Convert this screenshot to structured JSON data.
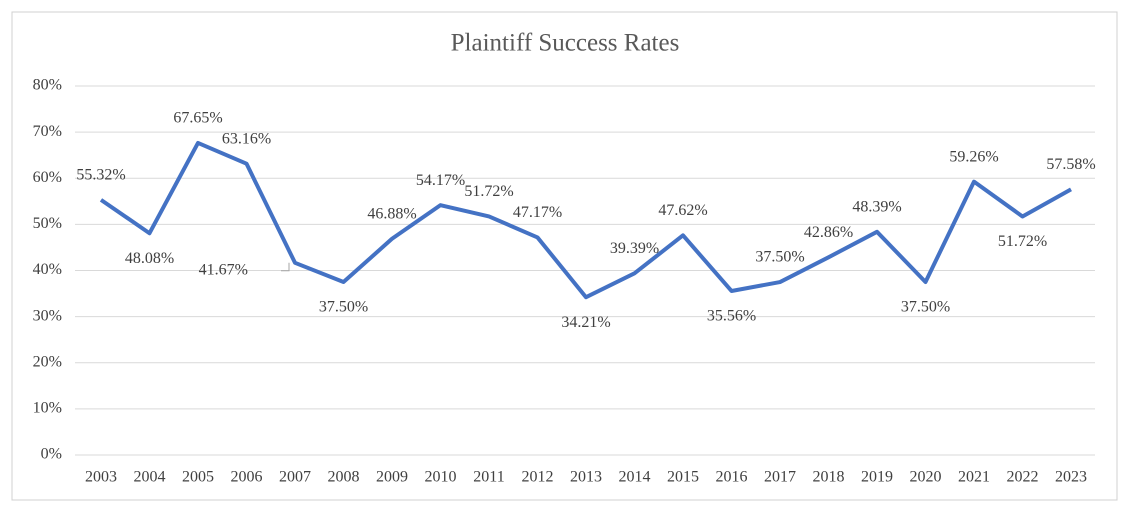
{
  "chart_data": {
    "type": "line",
    "title": "Plaintiff Success Rates",
    "categories": [
      "2003",
      "2004",
      "2005",
      "2006",
      "2007",
      "2008",
      "2009",
      "2010",
      "2011",
      "2012",
      "2013",
      "2014",
      "2015",
      "2016",
      "2017",
      "2018",
      "2019",
      "2020",
      "2021",
      "2022",
      "2023"
    ],
    "values": [
      55.32,
      48.08,
      67.65,
      63.16,
      41.67,
      37.5,
      46.88,
      54.17,
      51.72,
      47.17,
      34.21,
      39.39,
      47.62,
      35.56,
      37.5,
      42.86,
      48.39,
      37.5,
      59.26,
      51.72,
      57.58
    ],
    "value_labels": [
      "55.32%",
      "48.08%",
      "67.65%",
      "63.16%",
      "41.67%",
      "37.50%",
      "46.88%",
      "54.17%",
      "51.72%",
      "47.17%",
      "34.21%",
      "39.39%",
      "47.62%",
      "35.56%",
      "37.50%",
      "42.86%",
      "48.39%",
      "37.50%",
      "59.26%",
      "51.72%",
      "57.58%"
    ],
    "color": "#4472c4",
    "ylim": [
      0,
      80
    ],
    "yticks": [
      {
        "value": 0,
        "label": "0%"
      },
      {
        "value": 10,
        "label": "10%"
      },
      {
        "value": 20,
        "label": "20%"
      },
      {
        "value": 30,
        "label": "30%"
      },
      {
        "value": 40,
        "label": "40%"
      },
      {
        "value": 50,
        "label": "50%"
      },
      {
        "value": 60,
        "label": "60%"
      },
      {
        "value": 70,
        "label": "70%"
      },
      {
        "value": 80,
        "label": "80%"
      }
    ],
    "grid": true
  }
}
